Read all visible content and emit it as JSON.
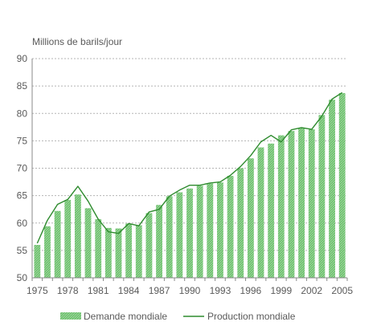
{
  "chart_data": {
    "type": "bar",
    "ylabel": "Millions de barils/jour",
    "ylim": [
      50,
      90
    ],
    "yticks": [
      50,
      55,
      60,
      65,
      70,
      75,
      80,
      85,
      90
    ],
    "xtick_labels": [
      "1975",
      "1978",
      "1981",
      "1984",
      "1987",
      "1990",
      "1993",
      "1996",
      "1999",
      "2002",
      "2005"
    ],
    "grid": "horizontal-dotted",
    "legend_position": "bottom",
    "x": [
      1975,
      1976,
      1977,
      1978,
      1979,
      1980,
      1981,
      1982,
      1983,
      1984,
      1985,
      1986,
      1987,
      1988,
      1989,
      1990,
      1991,
      1992,
      1993,
      1994,
      1995,
      1996,
      1997,
      1998,
      1999,
      2000,
      2001,
      2002,
      2003,
      2004,
      2005
    ],
    "series": [
      {
        "name": "Demande mondiale",
        "kind": "bar",
        "color": "#6cbf6c",
        "values": [
          56.0,
          59.4,
          62.2,
          64.2,
          65.2,
          62.7,
          60.7,
          59.1,
          59.0,
          59.9,
          59.6,
          61.8,
          63.3,
          64.9,
          65.6,
          66.3,
          66.8,
          67.2,
          67.4,
          68.6,
          70.0,
          71.8,
          73.8,
          74.5,
          76.0,
          76.8,
          77.4,
          77.1,
          79.7,
          82.5,
          83.7
        ]
      },
      {
        "name": "Production mondiale",
        "kind": "line",
        "color": "#2e8b2e",
        "values": [
          56.3,
          60.5,
          63.4,
          64.3,
          66.7,
          64.0,
          60.7,
          58.4,
          58.1,
          59.9,
          59.5,
          62.0,
          62.5,
          64.9,
          66.0,
          66.9,
          66.9,
          67.3,
          67.5,
          68.7,
          70.3,
          72.3,
          74.8,
          76.0,
          74.8,
          77.0,
          77.4,
          77.1,
          79.5,
          82.6,
          83.8
        ]
      }
    ]
  }
}
